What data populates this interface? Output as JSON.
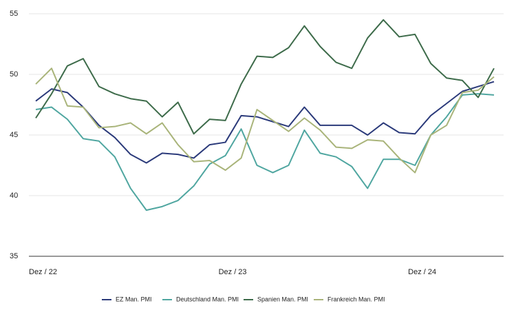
{
  "chart_data": {
    "type": "line",
    "categories": [
      "Dez / 22",
      null,
      null,
      null,
      null,
      null,
      null,
      null,
      null,
      null,
      null,
      null,
      "Dez / 23",
      null,
      null,
      null,
      null,
      null,
      null,
      null,
      null,
      null,
      null,
      null,
      "Dez / 24",
      null,
      null,
      null,
      null,
      null
    ],
    "series": [
      {
        "name": "EZ Man. PMI",
        "color": "#2b3a7a",
        "values": [
          47.8,
          48.8,
          48.5,
          47.3,
          45.8,
          44.8,
          43.4,
          42.7,
          43.5,
          43.4,
          43.1,
          44.2,
          44.4,
          46.6,
          46.5,
          46.1,
          45.7,
          47.3,
          45.8,
          45.8,
          45.8,
          45.0,
          46.0,
          45.2,
          45.1,
          46.6,
          47.6,
          48.6,
          49.0,
          49.4
        ]
      },
      {
        "name": "Deutschland Man. PMI",
        "color": "#4fa6a0",
        "values": [
          47.1,
          47.3,
          46.3,
          44.7,
          44.5,
          43.2,
          40.6,
          38.8,
          39.1,
          39.6,
          40.8,
          42.6,
          43.3,
          45.5,
          42.5,
          41.9,
          42.5,
          45.4,
          43.5,
          43.2,
          42.4,
          40.6,
          43.0,
          43.0,
          42.5,
          45.0,
          46.5,
          48.3,
          48.4,
          48.3
        ]
      },
      {
        "name": "Spanien Man. PMI",
        "color": "#3d6b4a",
        "values": [
          46.4,
          48.4,
          50.7,
          51.3,
          49.0,
          48.4,
          48.0,
          47.8,
          46.5,
          47.7,
          45.1,
          46.3,
          46.2,
          49.2,
          51.5,
          51.4,
          52.2,
          54.0,
          52.3,
          51.0,
          50.5,
          53.0,
          54.5,
          53.1,
          53.3,
          50.9,
          49.7,
          49.5,
          48.1,
          50.5
        ]
      },
      {
        "name": "Frankreich Man. PMI",
        "color": "#a9b47a",
        "values": [
          49.2,
          50.5,
          47.4,
          47.3,
          45.6,
          45.7,
          46.0,
          45.1,
          46.0,
          44.2,
          42.8,
          42.9,
          42.1,
          43.1,
          47.1,
          46.2,
          45.3,
          46.4,
          45.4,
          44.0,
          43.9,
          44.6,
          44.5,
          43.1,
          41.9,
          45.0,
          45.8,
          48.5,
          48.7,
          49.8
        ]
      }
    ],
    "ylim": [
      35,
      55
    ],
    "yticks": [
      35,
      40,
      45,
      50,
      55
    ],
    "grid": true
  }
}
